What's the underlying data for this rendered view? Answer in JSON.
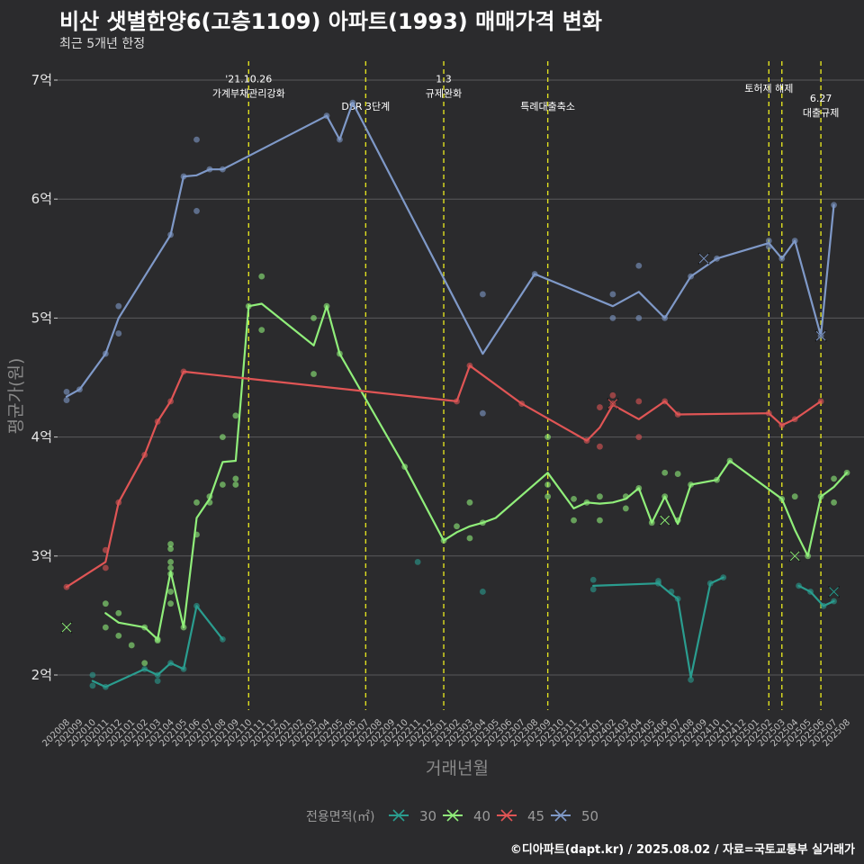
{
  "title": "비산 샛별한양6(고층1109) 아파트(1993) 매매가격 변화",
  "subtitle": "최근 5개년 한정",
  "caption": "©디아파트(dapt.kr) / 2025.08.02 / 자료=국토교통부 실거래가",
  "chart_data": {
    "type": "line",
    "xlabel": "거래년월",
    "ylabel": "평균가(원)",
    "ylim": [
      1.7,
      7.1
    ],
    "grid": true,
    "y_ticks": [
      {
        "value": 2,
        "label": "2억"
      },
      {
        "value": 3,
        "label": "3억"
      },
      {
        "value": 4,
        "label": "4억"
      },
      {
        "value": 5,
        "label": "5억"
      },
      {
        "value": 6,
        "label": "6억"
      },
      {
        "value": 7,
        "label": "7억"
      }
    ],
    "categories": [
      "202008",
      "202009",
      "202010",
      "202011",
      "202012",
      "202101",
      "202102",
      "202103",
      "202104",
      "202105",
      "202106",
      "202107",
      "202108",
      "202109",
      "202110",
      "202111",
      "202112",
      "202201",
      "202202",
      "202203",
      "202204",
      "202205",
      "202206",
      "202207",
      "202208",
      "202209",
      "202210",
      "202211",
      "202212",
      "202301",
      "202302",
      "202303",
      "202304",
      "202305",
      "202306",
      "202307",
      "202308",
      "202309",
      "202310",
      "202311",
      "202312",
      "202401",
      "202402",
      "202403",
      "202404",
      "202405",
      "202406",
      "202407",
      "202408",
      "202409",
      "202410",
      "202411",
      "202412",
      "202501",
      "202502",
      "202503",
      "202504",
      "202505",
      "202506",
      "202507",
      "202508"
    ],
    "legend": {
      "title": "전용면적(㎡)",
      "position": "bottom"
    },
    "series": [
      {
        "name": "30",
        "color": "#2a9d8f",
        "line": [
          [
            2.0,
            1.95
          ],
          [
            3.0,
            1.9
          ],
          [
            6.0,
            2.05
          ],
          [
            7.0,
            2.0
          ],
          [
            8.0,
            2.1
          ],
          [
            9.0,
            2.05
          ],
          [
            10.0,
            2.58
          ],
          [
            12.0,
            2.3
          ]
        ],
        "line2": [
          [
            40.5,
            2.75
          ],
          [
            45.5,
            2.77
          ],
          [
            46.5,
            2.68
          ],
          [
            47.0,
            2.64
          ],
          [
            48.0,
            1.98
          ],
          [
            49.5,
            2.77
          ],
          [
            50.5,
            2.82
          ]
        ],
        "line3": [
          [
            56.3,
            2.75
          ],
          [
            57.2,
            2.7
          ],
          [
            58.2,
            2.58
          ],
          [
            59.0,
            2.62
          ]
        ],
        "points": [
          [
            2.0,
            2.0
          ],
          [
            2.0,
            1.91
          ],
          [
            3.0,
            1.9
          ],
          [
            6.0,
            2.05
          ],
          [
            7.0,
            2.0
          ],
          [
            7.0,
            1.95
          ],
          [
            8.0,
            2.1
          ],
          [
            9.0,
            2.05
          ],
          [
            10.0,
            2.58
          ],
          [
            12.0,
            2.3
          ],
          [
            27.0,
            2.95
          ],
          [
            32.0,
            2.7
          ],
          [
            40.5,
            2.8
          ],
          [
            40.5,
            2.72
          ],
          [
            45.5,
            2.79
          ],
          [
            45.5,
            2.77
          ],
          [
            46.5,
            2.7
          ],
          [
            47.0,
            2.64
          ],
          [
            48.0,
            1.96
          ],
          [
            49.5,
            2.77
          ],
          [
            50.5,
            2.82
          ],
          [
            56.3,
            2.75
          ],
          [
            57.2,
            2.7
          ],
          [
            58.2,
            2.58
          ],
          [
            59.0,
            2.62
          ]
        ],
        "markers": [
          [
            59.0,
            2.7
          ]
        ]
      },
      {
        "name": "40",
        "color": "#90ee7a",
        "line": [
          [
            3.0,
            2.52
          ],
          [
            4.0,
            2.44
          ],
          [
            6.0,
            2.4
          ],
          [
            7.0,
            2.3
          ],
          [
            8.0,
            2.87
          ],
          [
            9.0,
            2.4
          ],
          [
            10.0,
            3.32
          ],
          [
            11.0,
            3.48
          ],
          [
            12.0,
            3.79
          ],
          [
            13.0,
            3.8
          ],
          [
            14.0,
            5.1
          ],
          [
            15.0,
            5.12
          ],
          [
            19.0,
            4.77
          ],
          [
            20.0,
            5.1
          ],
          [
            21.0,
            4.7
          ],
          [
            26.0,
            3.75
          ],
          [
            29.0,
            3.13
          ],
          [
            30.0,
            3.2
          ],
          [
            31.0,
            3.25
          ],
          [
            32.0,
            3.28
          ],
          [
            33.0,
            3.32
          ],
          [
            37.0,
            3.7
          ],
          [
            39.0,
            3.4
          ],
          [
            40.0,
            3.45
          ],
          [
            41.0,
            3.44
          ],
          [
            42.0,
            3.45
          ],
          [
            43.0,
            3.48
          ],
          [
            44.0,
            3.57
          ],
          [
            45.0,
            3.28
          ],
          [
            46.0,
            3.5
          ],
          [
            47.0,
            3.27
          ],
          [
            48.0,
            3.6
          ],
          [
            50.0,
            3.64
          ],
          [
            51.0,
            3.8
          ],
          [
            55.0,
            3.48
          ],
          [
            56.0,
            3.22
          ],
          [
            57.0,
            3.0
          ],
          [
            58.0,
            3.5
          ],
          [
            59.0,
            3.58
          ],
          [
            60.0,
            3.7
          ]
        ],
        "points": [
          [
            3.0,
            2.6
          ],
          [
            3.0,
            2.4
          ],
          [
            4.0,
            2.52
          ],
          [
            4.0,
            2.33
          ],
          [
            5.0,
            2.25
          ],
          [
            6.0,
            2.4
          ],
          [
            6.0,
            2.1
          ],
          [
            7.0,
            2.3
          ],
          [
            7.0,
            2.29
          ],
          [
            8.0,
            3.1
          ],
          [
            8.0,
            3.06
          ],
          [
            8.0,
            2.95
          ],
          [
            8.0,
            2.9
          ],
          [
            8.0,
            2.85
          ],
          [
            8.0,
            2.7
          ],
          [
            8.0,
            2.6
          ],
          [
            9.0,
            2.4
          ],
          [
            10.0,
            3.45
          ],
          [
            10.0,
            3.18
          ],
          [
            11.0,
            3.5
          ],
          [
            11.0,
            3.45
          ],
          [
            12.0,
            4.0
          ],
          [
            12.0,
            3.6
          ],
          [
            13.0,
            4.18
          ],
          [
            13.0,
            3.65
          ],
          [
            13.0,
            3.6
          ],
          [
            14.0,
            5.1
          ],
          [
            15.0,
            5.35
          ],
          [
            15.0,
            4.9
          ],
          [
            19.0,
            5.0
          ],
          [
            19.0,
            4.53
          ],
          [
            20.0,
            5.1
          ],
          [
            21.0,
            4.7
          ],
          [
            26.0,
            3.75
          ],
          [
            29.0,
            3.13
          ],
          [
            30.0,
            3.25
          ],
          [
            31.0,
            3.45
          ],
          [
            31.0,
            3.15
          ],
          [
            32.0,
            3.28
          ],
          [
            37.0,
            4.0
          ],
          [
            37.0,
            3.6
          ],
          [
            37.0,
            3.5
          ],
          [
            39.0,
            3.48
          ],
          [
            39.0,
            3.3
          ],
          [
            40.0,
            3.45
          ],
          [
            41.0,
            3.5
          ],
          [
            41.0,
            3.3
          ],
          [
            43.0,
            3.5
          ],
          [
            43.0,
            3.4
          ],
          [
            44.0,
            3.57
          ],
          [
            45.0,
            3.28
          ],
          [
            46.0,
            3.7
          ],
          [
            46.0,
            3.5
          ],
          [
            47.0,
            3.69
          ],
          [
            47.0,
            3.3
          ],
          [
            48.0,
            3.6
          ],
          [
            50.0,
            3.64
          ],
          [
            51.0,
            3.8
          ],
          [
            55.0,
            3.48
          ],
          [
            56.0,
            3.5
          ],
          [
            57.0,
            3.0
          ],
          [
            58.0,
            3.5
          ],
          [
            59.0,
            3.65
          ],
          [
            59.0,
            3.45
          ],
          [
            60.0,
            3.7
          ]
        ],
        "markers": [
          [
            0.0,
            2.4
          ],
          [
            46.0,
            3.3
          ],
          [
            56.0,
            3.0
          ]
        ]
      },
      {
        "name": "45",
        "color": "#e05555",
        "line": [
          [
            0.0,
            2.74
          ],
          [
            3.0,
            2.95
          ],
          [
            4.0,
            3.45
          ],
          [
            6.0,
            3.85
          ],
          [
            7.0,
            4.13
          ],
          [
            8.0,
            4.3
          ],
          [
            9.0,
            4.55
          ],
          [
            30.0,
            4.3
          ],
          [
            31.0,
            4.6
          ],
          [
            35.0,
            4.28
          ],
          [
            40.0,
            3.97
          ],
          [
            41.0,
            4.08
          ],
          [
            42.0,
            4.27
          ],
          [
            44.0,
            4.15
          ],
          [
            46.0,
            4.3
          ],
          [
            47.0,
            4.19
          ],
          [
            54.0,
            4.2
          ],
          [
            55.0,
            4.1
          ],
          [
            56.0,
            4.15
          ],
          [
            58.0,
            4.3
          ]
        ],
        "points": [
          [
            0.0,
            2.74
          ],
          [
            3.0,
            3.05
          ],
          [
            3.0,
            2.9
          ],
          [
            4.0,
            3.45
          ],
          [
            6.0,
            3.85
          ],
          [
            7.0,
            4.13
          ],
          [
            8.0,
            4.3
          ],
          [
            9.0,
            4.55
          ],
          [
            30.0,
            4.3
          ],
          [
            31.0,
            4.6
          ],
          [
            35.0,
            4.28
          ],
          [
            40.0,
            3.97
          ],
          [
            41.0,
            4.25
          ],
          [
            41.0,
            3.92
          ],
          [
            42.0,
            4.35
          ],
          [
            42.0,
            4.28
          ],
          [
            44.0,
            4.3
          ],
          [
            44.0,
            4.0
          ],
          [
            46.0,
            4.3
          ],
          [
            47.0,
            4.19
          ],
          [
            54.0,
            4.2
          ],
          [
            55.0,
            4.1
          ],
          [
            56.0,
            4.15
          ],
          [
            58.0,
            4.3
          ]
        ],
        "markers": [
          [
            42.0,
            4.28
          ]
        ]
      },
      {
        "name": "50",
        "color": "#7f99c8",
        "line": [
          [
            0.0,
            4.34
          ],
          [
            1.0,
            4.4
          ],
          [
            3.0,
            4.7
          ],
          [
            4.0,
            5.0
          ],
          [
            8.0,
            5.7
          ],
          [
            9.0,
            6.19
          ],
          [
            10.0,
            6.2
          ],
          [
            11.0,
            6.25
          ],
          [
            12.0,
            6.25
          ],
          [
            20.0,
            6.7
          ],
          [
            21.0,
            6.5
          ],
          [
            22.0,
            6.81
          ],
          [
            32.0,
            4.7
          ],
          [
            36.0,
            5.37
          ],
          [
            42.0,
            5.1
          ],
          [
            44.0,
            5.22
          ],
          [
            46.0,
            5.0
          ],
          [
            48.0,
            5.35
          ],
          [
            50.0,
            5.5
          ],
          [
            54.0,
            5.63
          ],
          [
            55.0,
            5.5
          ],
          [
            56.0,
            5.65
          ],
          [
            58.0,
            4.85
          ],
          [
            59.0,
            5.95
          ]
        ],
        "points": [
          [
            0.0,
            4.38
          ],
          [
            0.0,
            4.31
          ],
          [
            1.0,
            4.4
          ],
          [
            3.0,
            4.7
          ],
          [
            4.0,
            5.1
          ],
          [
            4.0,
            4.87
          ],
          [
            8.0,
            5.7
          ],
          [
            9.0,
            6.19
          ],
          [
            10.0,
            6.5
          ],
          [
            10.0,
            5.9
          ],
          [
            11.0,
            6.25
          ],
          [
            12.0,
            6.25
          ],
          [
            20.0,
            6.7
          ],
          [
            21.0,
            6.5
          ],
          [
            22.0,
            6.81
          ],
          [
            32.0,
            5.2
          ],
          [
            32.0,
            4.2
          ],
          [
            36.0,
            5.37
          ],
          [
            42.0,
            5.2
          ],
          [
            42.0,
            5.0
          ],
          [
            44.0,
            5.44
          ],
          [
            44.0,
            5.0
          ],
          [
            46.0,
            5.0
          ],
          [
            48.0,
            5.35
          ],
          [
            50.0,
            5.5
          ],
          [
            54.0,
            5.65
          ],
          [
            54.0,
            5.6
          ],
          [
            55.0,
            5.5
          ],
          [
            56.0,
            5.65
          ],
          [
            58.0,
            4.85
          ],
          [
            59.0,
            5.95
          ]
        ],
        "markers": [
          [
            49.0,
            5.5
          ],
          [
            58.0,
            4.85
          ]
        ]
      }
    ],
    "annotations": [
      {
        "x": 14.0,
        "lines": [
          "'21.10.26",
          "가계부채관리강화"
        ],
        "y": 6.98
      },
      {
        "x": 23.0,
        "lines": [
          "DSR 3단계"
        ],
        "y": 6.75
      },
      {
        "x": 29.0,
        "lines": [
          "1.3",
          "규제완화"
        ],
        "y": 6.98
      },
      {
        "x": 37.0,
        "lines": [
          "특례대출축소"
        ],
        "y": 6.75
      },
      {
        "x": 54.0,
        "lines": [
          "토허제 해제"
        ],
        "y": 6.9
      },
      {
        "x": 58.0,
        "lines": [
          "6.27",
          "대출규제"
        ],
        "y": 6.82
      }
    ],
    "vlines": [
      14.0,
      23.0,
      29.0,
      37.0,
      54.0,
      55.0,
      58.0
    ]
  }
}
